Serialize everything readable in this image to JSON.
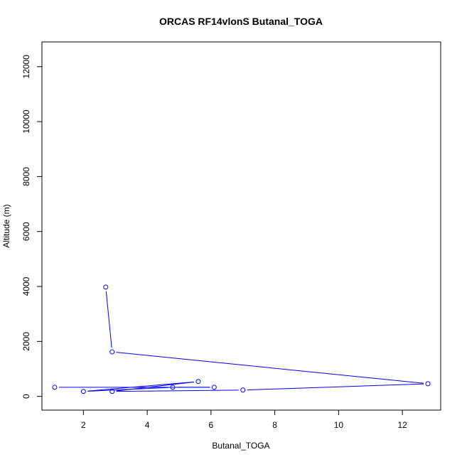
{
  "chart_data": {
    "type": "line",
    "title": "ORCAS RF14vlonS Butanal_TOGA",
    "xlabel": "Butanal_TOGA",
    "ylabel": "Altitude (m)",
    "xlim": [
      0.7,
      13.2
    ],
    "ylim": [
      -500,
      12900
    ],
    "x_ticks": [
      2,
      4,
      6,
      8,
      10,
      12
    ],
    "y_ticks": [
      0,
      2000,
      4000,
      6000,
      8000,
      10000,
      12000
    ],
    "series": [
      {
        "color": "#0000ff",
        "marker": "open-circle",
        "points": [
          {
            "x": 2.7,
            "y": 3980
          },
          {
            "x": 2.9,
            "y": 1620
          },
          {
            "x": 12.8,
            "y": 460
          },
          {
            "x": 7.0,
            "y": 230
          },
          {
            "x": 2.9,
            "y": 180
          },
          {
            "x": 5.6,
            "y": 540
          },
          {
            "x": 2.0,
            "y": 180
          },
          {
            "x": 4.8,
            "y": 330
          },
          {
            "x": 6.1,
            "y": 330
          },
          {
            "x": 1.1,
            "y": 330
          }
        ]
      }
    ],
    "grid": false,
    "legend": "none"
  }
}
